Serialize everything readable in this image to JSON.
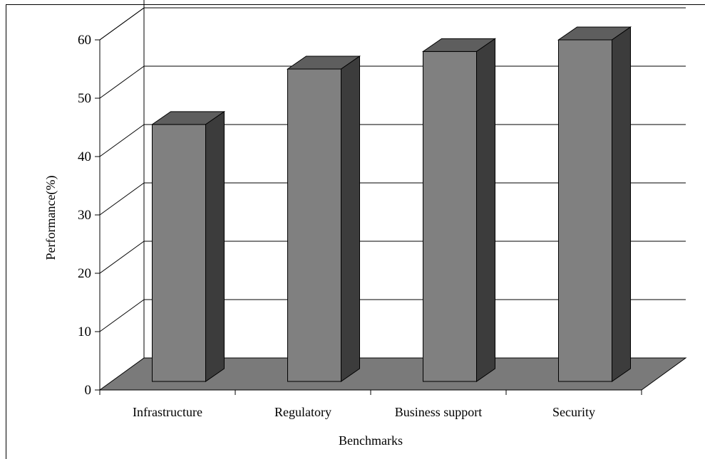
{
  "chart_data": {
    "type": "bar",
    "categories": [
      "Infrastructure",
      "Regulatory",
      "Business support",
      "Security"
    ],
    "values": [
      45.5,
      55,
      58,
      60
    ],
    "xlabel": "Benchmarks",
    "ylabel": "Performance(%)",
    "ylim": [
      0,
      60
    ],
    "yticks": [
      0,
      10,
      20,
      30,
      40,
      50,
      60
    ],
    "grid": true,
    "style": "3d",
    "colors": {
      "bar_front": "#808080",
      "bar_top": "#5e5e5e",
      "bar_side": "#3c3c3c",
      "floor": "#7a7a7a",
      "line": "#000000"
    }
  }
}
